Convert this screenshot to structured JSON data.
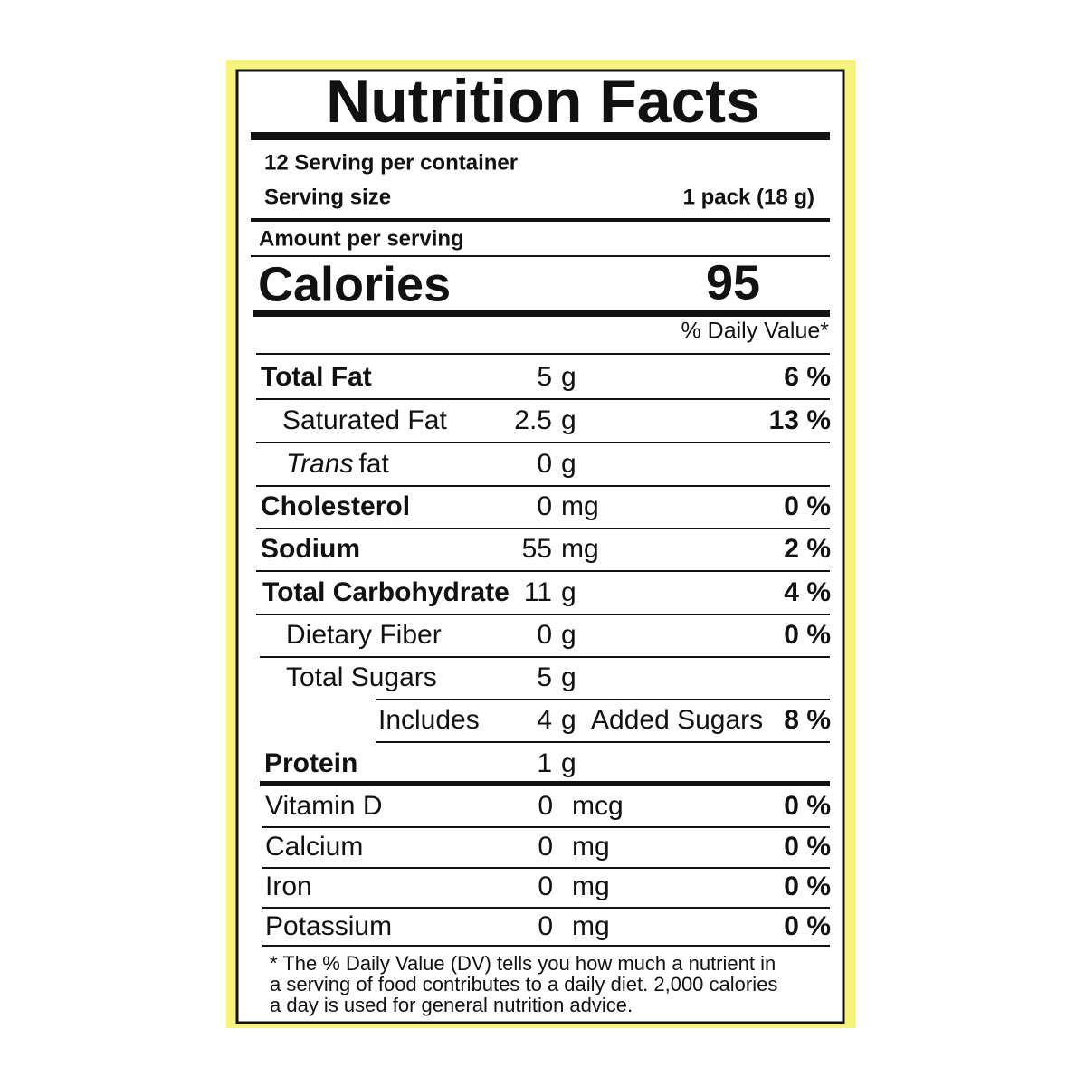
{
  "title": "Nutrition Facts",
  "servings": "12 Serving per container",
  "serving_size": {
    "label": "Serving size",
    "value": "1 pack (18 g)"
  },
  "amount_per_serving": "Amount per serving",
  "calories": {
    "label": "Calories",
    "value": "95"
  },
  "dv_header": "% Daily Value*",
  "nutrients": [
    {
      "name": "Total Fat",
      "amount": "5",
      "unit": "g",
      "dv": "6 %"
    },
    {
      "name": "Saturated Fat",
      "amount": "2.5",
      "unit": "g",
      "dv": "13 %"
    },
    {
      "name_italic": "Trans",
      "name": "fat",
      "amount": "0",
      "unit": "g"
    },
    {
      "name": "Cholesterol",
      "amount": "0",
      "unit": "mg",
      "dv": "0 %"
    },
    {
      "name": "Sodium",
      "amount": "55",
      "unit": "mg",
      "dv": "2 %"
    },
    {
      "name": "Total Carbohydrate",
      "amount": "11",
      "unit": "g",
      "dv": "4 %"
    },
    {
      "name": "Dietary Fiber",
      "amount": "0",
      "unit": "g",
      "dv": "0 %"
    },
    {
      "name": "Total Sugars",
      "amount": "5",
      "unit": "g"
    },
    {
      "name": "Includes",
      "amount": "4",
      "unit": "g",
      "suffix": "Added Sugars",
      "dv": "8 %"
    },
    {
      "name": "Protein",
      "amount": "1",
      "unit": "g"
    }
  ],
  "vitamins": [
    {
      "name": "Vitamin D",
      "amount": "0",
      "unit": "mcg",
      "dv": "0 %"
    },
    {
      "name": "Calcium",
      "amount": "0",
      "unit": "mg",
      "dv": "0 %"
    },
    {
      "name": "Iron",
      "amount": "0",
      "unit": "mg",
      "dv": "0 %"
    },
    {
      "name": "Potassium",
      "amount": "0",
      "unit": "mg",
      "dv": "0 %"
    }
  ],
  "footnote": [
    "* The % Daily Value (DV) tells you how much a nutrient in",
    "a serving of food contributes to a daily diet. 2,000 calories",
    "a day is used for general nutrition advice."
  ]
}
